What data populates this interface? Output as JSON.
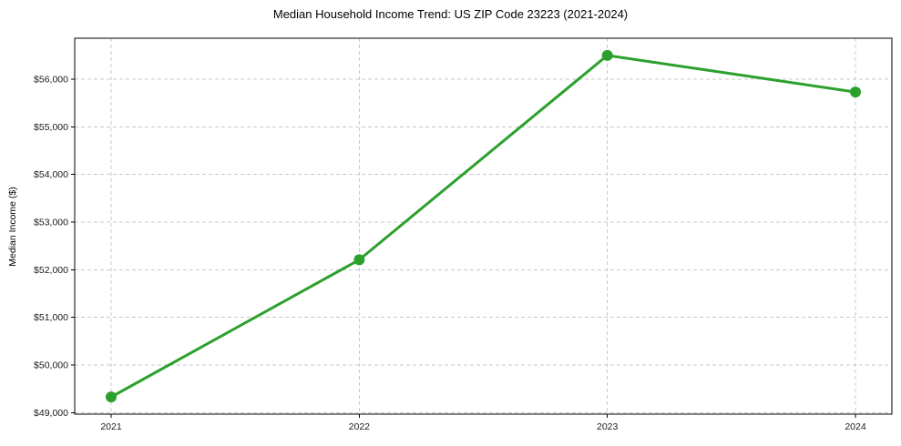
{
  "chart_data": {
    "type": "line",
    "title": "Median Household Income Trend: US ZIP Code 23223 (2021-2024)",
    "xlabel": "",
    "ylabel": "Median Income ($)",
    "x": [
      2021,
      2022,
      2023,
      2024
    ],
    "xtick_labels": [
      "2021",
      "2022",
      "2023",
      "2024"
    ],
    "series": [
      {
        "values": [
          49330,
          52210,
          56500,
          55730
        ],
        "color": "#2ca02c",
        "marker": "circle"
      }
    ],
    "yticks": [
      49000,
      50000,
      51000,
      52000,
      53000,
      54000,
      55000,
      56000
    ],
    "ytick_labels": [
      "$49,000",
      "$50,000",
      "$51,000",
      "$52,000",
      "$53,000",
      "$54,000",
      "$55,000",
      "$56,000"
    ],
    "ylim": [
      48970,
      56860
    ],
    "grid": true,
    "grid_linestyle": "dashed",
    "grid_color": "#c9c9c9",
    "spine_color": "#000000",
    "tick_color": "#000000",
    "text_color": "#1a1a1a",
    "background": "#ffffff"
  }
}
